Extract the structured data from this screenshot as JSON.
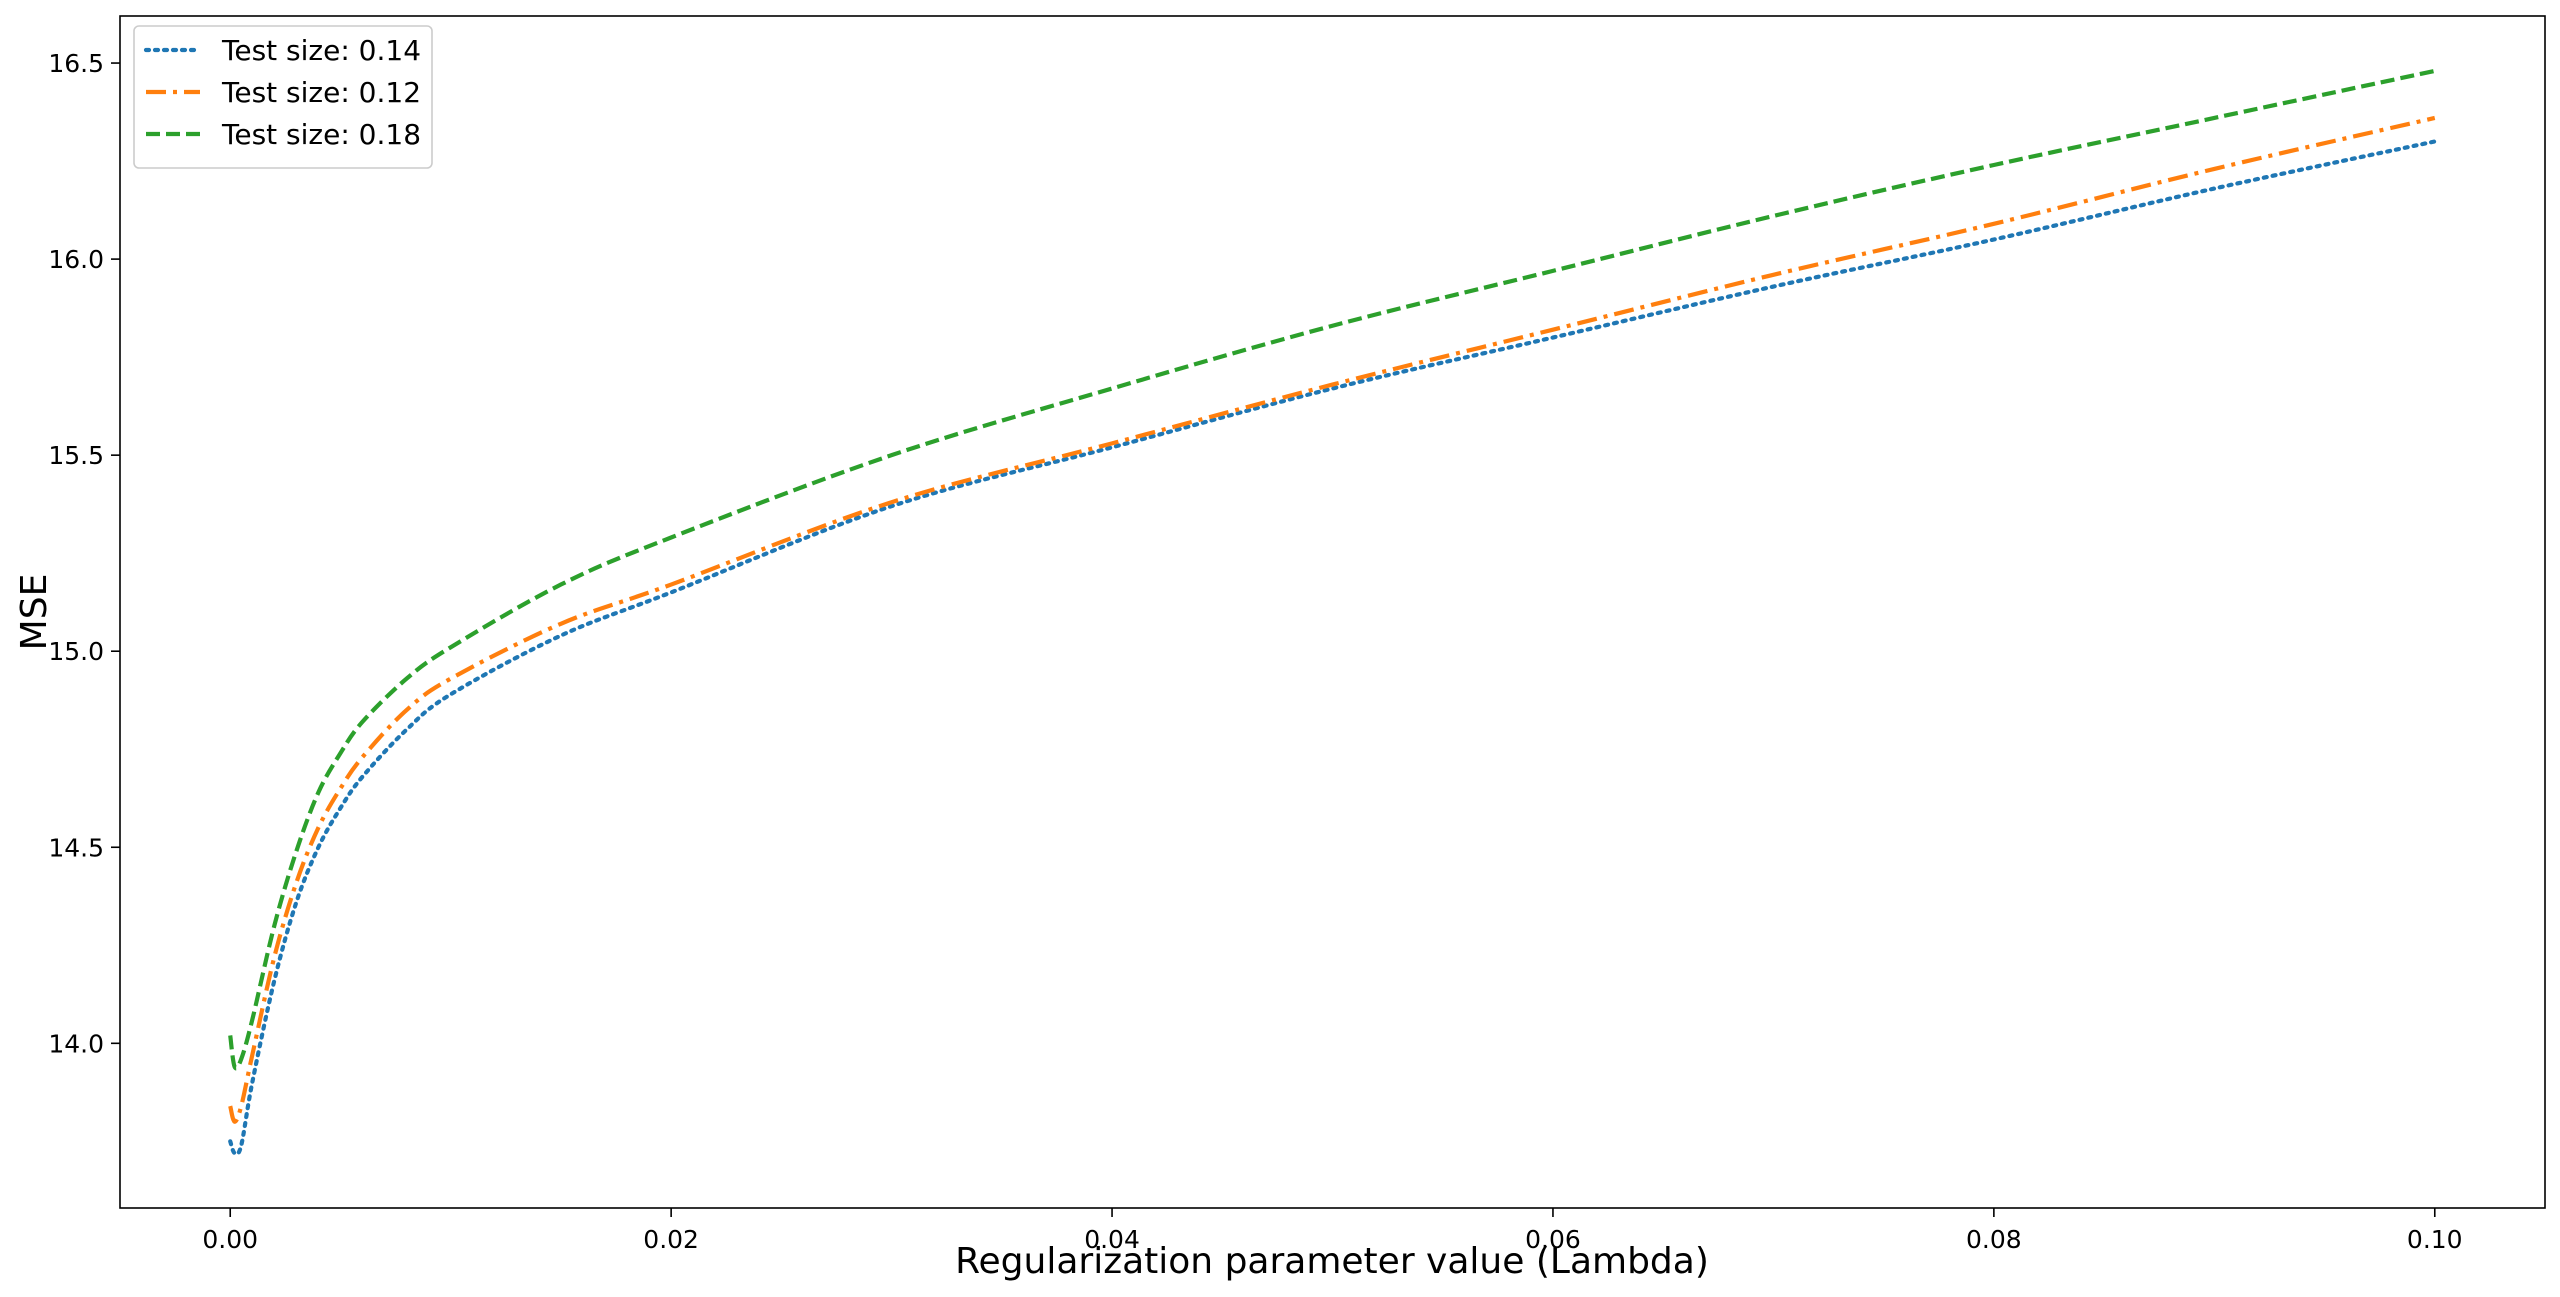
{
  "chart_data": {
    "type": "line",
    "title": "",
    "xlabel": "Regularization parameter value (Lambda)",
    "ylabel": "MSE",
    "xlim": [
      -0.005,
      0.105
    ],
    "ylim": [
      13.58,
      16.62
    ],
    "xticks": [
      0.0,
      0.02,
      0.04,
      0.06,
      0.08,
      0.1
    ],
    "xtick_labels": [
      "0.00",
      "0.02",
      "0.04",
      "0.06",
      "0.08",
      "0.10"
    ],
    "yticks": [
      14.0,
      14.5,
      15.0,
      15.5,
      16.0,
      16.5
    ],
    "ytick_labels": [
      "14.0",
      "14.5",
      "15.0",
      "15.5",
      "16.0",
      "16.5"
    ],
    "grid": false,
    "legend_position": "top-left",
    "x": [
      0.0,
      0.0002,
      0.0005,
      0.001,
      0.002,
      0.003,
      0.004,
      0.005,
      0.006,
      0.008,
      0.01,
      0.015,
      0.02,
      0.03,
      0.04,
      0.05,
      0.06,
      0.07,
      0.08,
      0.09,
      0.1
    ],
    "series": [
      {
        "name": "Test size: 0.14",
        "color": "#1f77b4",
        "dash": "dotted",
        "values": [
          13.75,
          13.72,
          13.74,
          13.9,
          14.16,
          14.36,
          14.5,
          14.6,
          14.68,
          14.8,
          14.89,
          15.04,
          15.15,
          15.37,
          15.52,
          15.67,
          15.8,
          15.93,
          16.05,
          16.18,
          16.3
        ]
      },
      {
        "name": "Test size: 0.12",
        "color": "#ff7f0e",
        "dash": "dashdot",
        "values": [
          13.84,
          13.8,
          13.84,
          13.97,
          14.22,
          14.41,
          14.55,
          14.65,
          14.73,
          14.85,
          14.93,
          15.07,
          15.17,
          15.38,
          15.53,
          15.68,
          15.82,
          15.96,
          16.09,
          16.23,
          16.36
        ]
      },
      {
        "name": "Test size: 0.18",
        "color": "#2ca02c",
        "dash": "dashed",
        "values": [
          14.02,
          13.94,
          13.96,
          14.06,
          14.3,
          14.49,
          14.64,
          14.74,
          14.82,
          14.93,
          15.01,
          15.17,
          15.29,
          15.5,
          15.67,
          15.83,
          15.97,
          16.11,
          16.24,
          16.36,
          16.48
        ]
      }
    ]
  }
}
